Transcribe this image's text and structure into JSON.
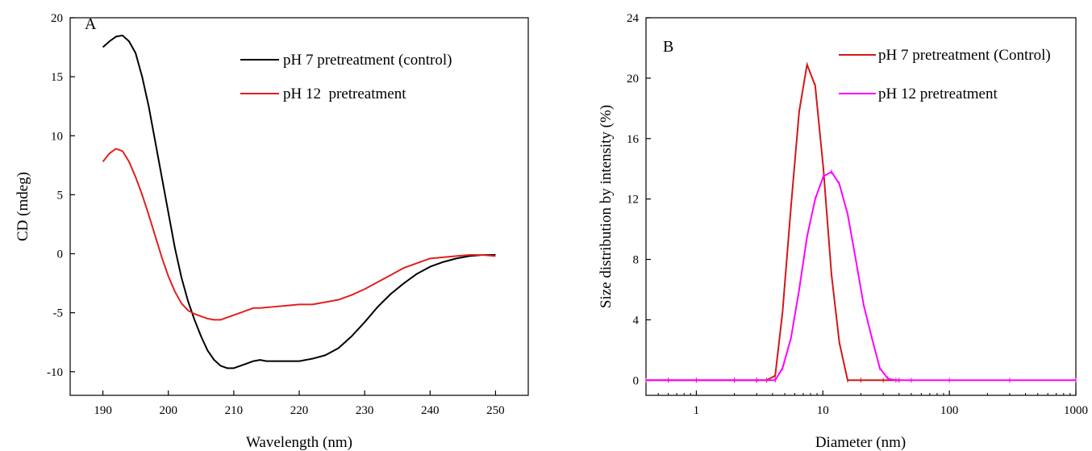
{
  "colors": {
    "black": "#000000",
    "red": "#e02020",
    "magenta": "#ff00ff",
    "darkred": "#d01818"
  },
  "chart_data": [
    {
      "panel": "A",
      "type": "line",
      "xlabel": "Wavelength (nm)",
      "ylabel": "CD (mdeg)",
      "xlim": [
        185,
        255
      ],
      "ylim": [
        -12,
        20
      ],
      "xticks": [
        190,
        200,
        210,
        220,
        230,
        240,
        250
      ],
      "yticks": [
        -10,
        -5,
        0,
        5,
        10,
        15,
        20
      ],
      "xtick_labels": [
        "190",
        "200",
        "210",
        "220",
        "230",
        "240",
        "250"
      ],
      "ytick_labels": [
        "-10",
        "-5",
        "0",
        "5",
        "10",
        "15",
        "20"
      ],
      "legend_position": "top-right",
      "grid": false,
      "series": [
        {
          "name": "pH 7 pretreatment (control)",
          "color": "#000000",
          "x": [
            190,
            191,
            192,
            193,
            194,
            195,
            196,
            197,
            198,
            199,
            200,
            201,
            202,
            203,
            204,
            205,
            206,
            207,
            208,
            209,
            210,
            211,
            212,
            213,
            214,
            215,
            216,
            218,
            220,
            222,
            224,
            226,
            228,
            230,
            232,
            234,
            236,
            238,
            240,
            242,
            244,
            246,
            248,
            250
          ],
          "y": [
            17.5,
            18.0,
            18.4,
            18.5,
            18.0,
            17.0,
            15.0,
            12.5,
            9.5,
            6.5,
            3.5,
            0.5,
            -2.0,
            -4.0,
            -5.6,
            -7.0,
            -8.2,
            -9.0,
            -9.5,
            -9.7,
            -9.7,
            -9.5,
            -9.3,
            -9.1,
            -9.0,
            -9.1,
            -9.1,
            -9.1,
            -9.1,
            -8.9,
            -8.6,
            -8.0,
            -7.0,
            -5.8,
            -4.5,
            -3.4,
            -2.5,
            -1.7,
            -1.1,
            -0.7,
            -0.4,
            -0.2,
            -0.1,
            -0.1
          ]
        },
        {
          "name": "pH 12  pretreatment",
          "color": "#e02020",
          "x": [
            190,
            191,
            192,
            193,
            194,
            195,
            196,
            197,
            198,
            199,
            200,
            201,
            202,
            203,
            204,
            205,
            206,
            207,
            208,
            209,
            210,
            211,
            212,
            213,
            214,
            216,
            218,
            220,
            222,
            224,
            226,
            228,
            230,
            232,
            234,
            236,
            238,
            240,
            242,
            244,
            246,
            248,
            250
          ],
          "y": [
            7.8,
            8.5,
            8.9,
            8.7,
            7.8,
            6.5,
            5.0,
            3.3,
            1.5,
            -0.3,
            -1.9,
            -3.2,
            -4.2,
            -4.8,
            -5.1,
            -5.3,
            -5.5,
            -5.6,
            -5.6,
            -5.4,
            -5.2,
            -5.0,
            -4.8,
            -4.6,
            -4.6,
            -4.5,
            -4.4,
            -4.3,
            -4.3,
            -4.1,
            -3.9,
            -3.5,
            -3.0,
            -2.4,
            -1.8,
            -1.2,
            -0.8,
            -0.4,
            -0.3,
            -0.2,
            -0.1,
            -0.1,
            -0.2
          ]
        }
      ]
    },
    {
      "panel": "B",
      "type": "line",
      "xlabel": "Diameter (nm)",
      "ylabel": "Size distribution by intensity (%)",
      "xscale": "log",
      "xlim": [
        0.4,
        1000
      ],
      "ylim": [
        -1,
        24
      ],
      "xticks": [
        1,
        10,
        100,
        1000
      ],
      "yticks": [
        0,
        4,
        8,
        12,
        16,
        20,
        24
      ],
      "xtick_labels": [
        "1",
        "10",
        "100",
        "1000"
      ],
      "ytick_labels": [
        "0",
        "4",
        "8",
        "12",
        "16",
        "20",
        "24"
      ],
      "legend_position": "top-right",
      "grid": false,
      "series": [
        {
          "name": "pH 7 pretreatment (Control)",
          "color": "#d01818",
          "x": [
            0.4,
            0.6,
            1,
            2,
            3,
            3.6,
            4.2,
            4.8,
            5.6,
            6.5,
            7.5,
            8.7,
            10.1,
            11.7,
            13.5,
            15.7,
            20,
            30,
            40
          ],
          "y": [
            0,
            0,
            0,
            0,
            0,
            0,
            0.3,
            4.5,
            11.5,
            17.8,
            20.9,
            19.5,
            14.0,
            7.0,
            2.5,
            0,
            0,
            0,
            0
          ]
        },
        {
          "name": "pH 12 pretreatment",
          "color": "#ff00ff",
          "x": [
            0.4,
            0.6,
            1,
            2,
            3,
            4.2,
            4.8,
            5.6,
            6.5,
            7.5,
            8.7,
            10.1,
            11.7,
            13.5,
            15.7,
            18.2,
            21,
            24.4,
            28.2,
            32.7,
            37.8,
            50,
            100,
            300,
            1000
          ],
          "y": [
            0,
            0,
            0,
            0,
            0,
            0,
            0.8,
            2.8,
            6.0,
            9.5,
            12.0,
            13.5,
            13.8,
            13.0,
            11.0,
            8.0,
            5.0,
            2.8,
            0.8,
            0.1,
            0,
            0,
            0,
            0,
            0
          ]
        }
      ]
    }
  ]
}
